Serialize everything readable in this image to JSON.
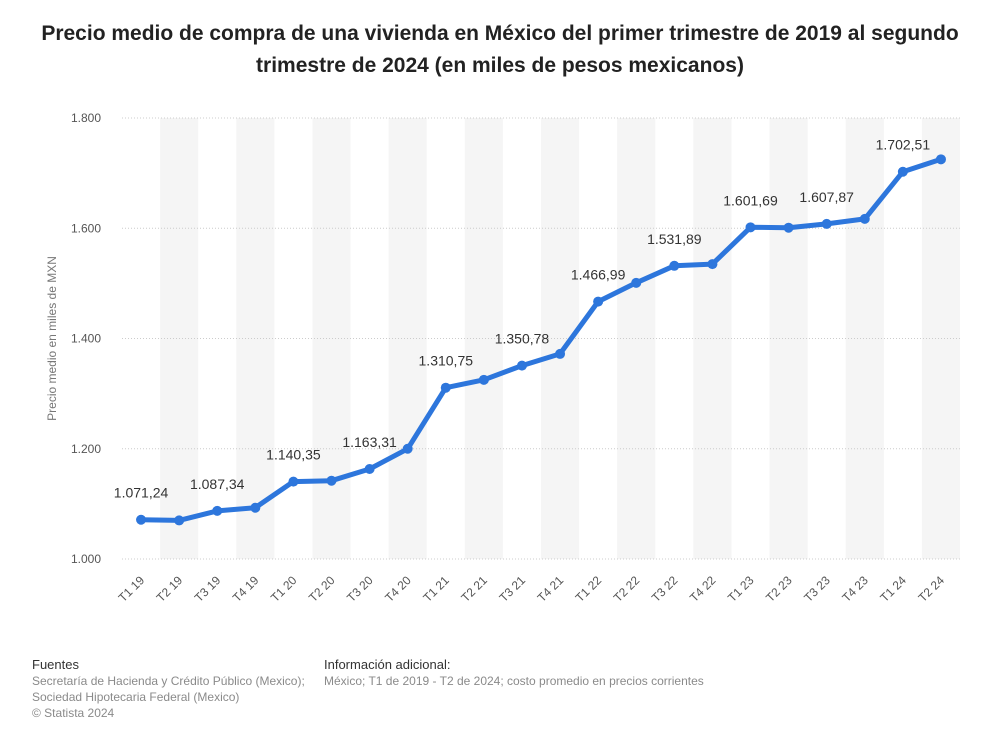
{
  "chart_data": {
    "type": "line",
    "title": "Precio medio de compra de una vivienda en México del primer trimestre de 2019 al segundo trimestre de 2024 (en miles de pesos mexicanos)",
    "xlabel": "",
    "ylabel": "Precio medio en miles de MXN",
    "ylim": [
      1000,
      1800
    ],
    "yticks": [
      1000,
      1200,
      1400,
      1600,
      1800
    ],
    "ytick_labels": [
      "1.000",
      "1.200",
      "1.400",
      "1.600",
      "1.800"
    ],
    "grid": true,
    "categories": [
      "T1 19",
      "T2 19",
      "T3 19",
      "T4 19",
      "T1 20",
      "T2 20",
      "T3 20",
      "T4 20",
      "T1 21",
      "T2 21",
      "T3 21",
      "T4 21",
      "T1 22",
      "T2 22",
      "T3 22",
      "T4 22",
      "T1 23",
      "T2 23",
      "T3 23",
      "T4 23",
      "T1 24",
      "T2 24"
    ],
    "series": [
      {
        "name": "Precio medio",
        "color": "#2d76dc",
        "values": [
          1071.24,
          1070,
          1087.34,
          1093,
          1140.35,
          1142,
          1163.31,
          1200,
          1310.75,
          1325,
          1350.78,
          1372,
          1466.99,
          1501,
          1531.89,
          1535,
          1601.69,
          1601,
          1607.87,
          1617,
          1702.51,
          1725
        ]
      }
    ],
    "data_labels": [
      {
        "index": 0,
        "text": "1.071,24"
      },
      {
        "index": 2,
        "text": "1.087,34"
      },
      {
        "index": 4,
        "text": "1.140,35"
      },
      {
        "index": 6,
        "text": "1.163,31"
      },
      {
        "index": 8,
        "text": "1.310,75"
      },
      {
        "index": 10,
        "text": "1.350,78"
      },
      {
        "index": 12,
        "text": "1.466,99"
      },
      {
        "index": 14,
        "text": "1.531,89"
      },
      {
        "index": 16,
        "text": "1.601,69"
      },
      {
        "index": 18,
        "text": "1.607,87"
      },
      {
        "index": 20,
        "text": "1.702,51"
      }
    ]
  },
  "footer": {
    "sources_heading": "Fuentes",
    "sources_line1": "Secretaría de Hacienda y Crédito Público (Mexico);",
    "sources_line2": "Sociedad Hipotecaria Federal (Mexico)",
    "copyright": "© Statista 2024",
    "info_heading": "Información adicional:",
    "info_text": "México; T1 de 2019 - T2 de 2024; costo promedio en precios corrientes"
  }
}
